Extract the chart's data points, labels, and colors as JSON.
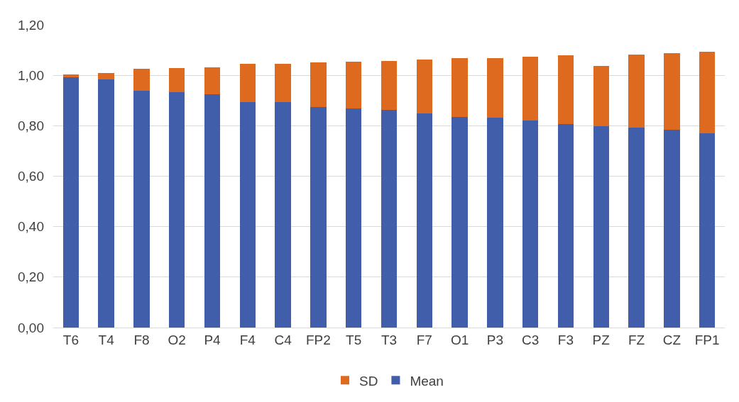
{
  "chart_data": {
    "type": "bar",
    "stacked": true,
    "categories": [
      "T6",
      "T4",
      "F8",
      "O2",
      "P4",
      "F4",
      "C4",
      "FP2",
      "T5",
      "T3",
      "F7",
      "O1",
      "P3",
      "C3",
      "F3",
      "PZ",
      "FZ",
      "CZ",
      "FP1"
    ],
    "series": [
      {
        "name": "Mean",
        "color": "#405eaa",
        "values": [
          0.993,
          0.984,
          0.939,
          0.933,
          0.925,
          0.893,
          0.893,
          0.874,
          0.868,
          0.862,
          0.848,
          0.834,
          0.832,
          0.821,
          0.807,
          0.797,
          0.792,
          0.783,
          0.771
        ]
      },
      {
        "name": "SD",
        "color": "#dd6a1f",
        "values": [
          0.009,
          0.024,
          0.086,
          0.096,
          0.106,
          0.152,
          0.152,
          0.176,
          0.187,
          0.195,
          0.215,
          0.234,
          0.236,
          0.253,
          0.271,
          0.24,
          0.291,
          0.304,
          0.322
        ]
      }
    ],
    "ylim": [
      0,
      1.2
    ],
    "yticks": [
      {
        "value": 0,
        "label": "0,00"
      },
      {
        "value": 0.2,
        "label": "0,20"
      },
      {
        "value": 0.4,
        "label": "0,40"
      },
      {
        "value": 0.6,
        "label": "0,60"
      },
      {
        "value": 0.8,
        "label": "0,80"
      },
      {
        "value": 1.0,
        "label": "1,00"
      },
      {
        "value": 1.2,
        "label": "1,20"
      }
    ],
    "grid": "y",
    "legend": "bottom"
  }
}
